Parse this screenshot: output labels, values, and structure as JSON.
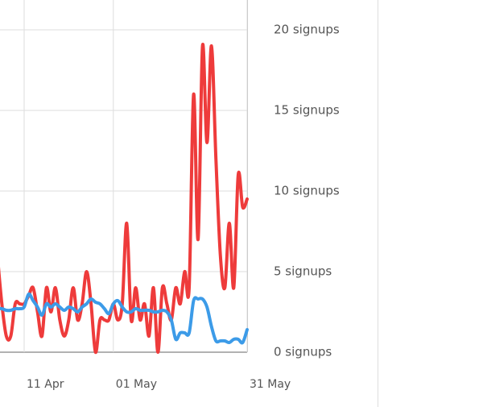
{
  "chart_data": {
    "type": "line",
    "categories": [
      null,
      null,
      null,
      null,
      null,
      null,
      "11 Apr",
      null,
      null,
      null,
      null,
      null,
      null,
      null,
      null,
      null,
      null,
      null,
      null,
      null,
      null,
      null,
      null,
      null,
      null,
      null,
      "01 May",
      null,
      null,
      null,
      null,
      null,
      null,
      null,
      null,
      null,
      null,
      null,
      null,
      null,
      null,
      null,
      null,
      null,
      null,
      null,
      null,
      null,
      null,
      null,
      null,
      null,
      null,
      null,
      null,
      null,
      "31 May"
    ],
    "series": [
      {
        "color": "#ee3b3b",
        "values": [
          6,
          3,
          1,
          1,
          3,
          3,
          3,
          3.5,
          4,
          2.5,
          1,
          4,
          2.5,
          4,
          2,
          1,
          2,
          4,
          2,
          3,
          5,
          3,
          0,
          2,
          2,
          2,
          3,
          2,
          3,
          8,
          2,
          4,
          2,
          3,
          1,
          4,
          0,
          4,
          3,
          2,
          4,
          3,
          5,
          4,
          16,
          7,
          19,
          13,
          19,
          12,
          6,
          4,
          8,
          4,
          11,
          9,
          9.5
        ]
      },
      {
        "color": "#3c9be8",
        "values": [
          2.7,
          2.7,
          2.6,
          2.6,
          2.7,
          2.7,
          2.8,
          3.6,
          3.2,
          2.8,
          2.3,
          3,
          2.8,
          3,
          2.8,
          2.6,
          2.8,
          2.7,
          2.5,
          2.8,
          3,
          3.3,
          3.1,
          3,
          2.7,
          2.4,
          3,
          3.2,
          2.8,
          2.5,
          2.5,
          2.7,
          2.6,
          2.6,
          2.6,
          2.5,
          2.5,
          2.6,
          2.5,
          2,
          0.8,
          1.2,
          1.2,
          1.2,
          3.2,
          3.3,
          3.3,
          2.8,
          1.6,
          0.7,
          0.7,
          0.7,
          0.6,
          0.8,
          0.8,
          0.6,
          1.4
        ]
      }
    ],
    "ylim": [
      0,
      20
    ],
    "yticks": [
      {
        "value": 0,
        "label": "0 signups"
      },
      {
        "value": 5,
        "label": "5 signups"
      },
      {
        "value": 10,
        "label": "10 signups"
      },
      {
        "value": 15,
        "label": "15 signups"
      },
      {
        "value": 20,
        "label": "20 signups"
      }
    ],
    "grid": true
  }
}
